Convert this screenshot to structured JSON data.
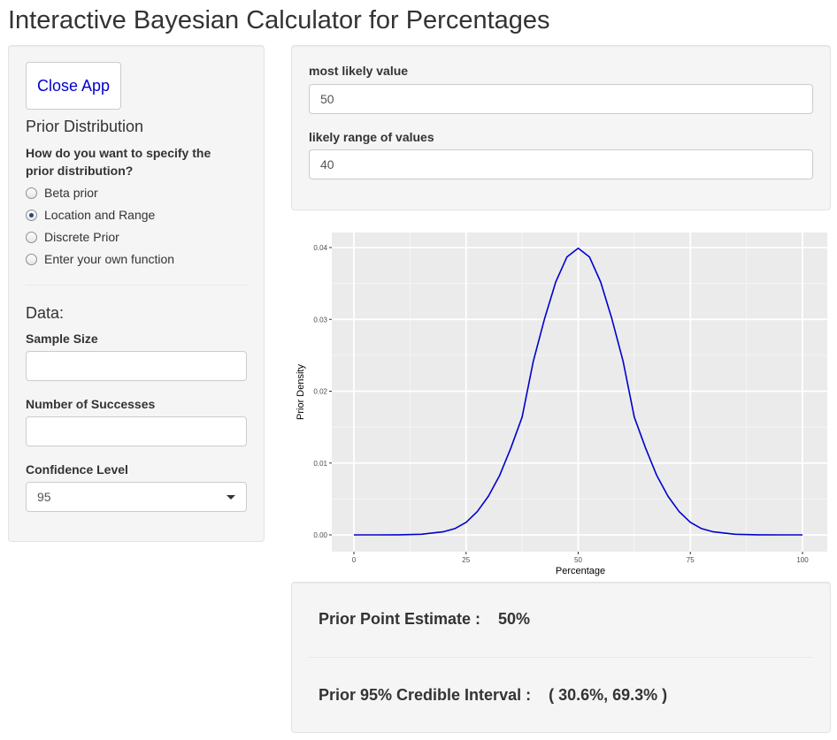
{
  "app": {
    "title": "Interactive Bayesian Calculator for Percentages"
  },
  "sidebar": {
    "close_button": "Close App",
    "prior_heading": "Prior Distribution",
    "prior_question_line1": "How do you want to specify the",
    "prior_question_line2": "prior distribution?",
    "prior_options": [
      {
        "label": "Beta prior",
        "selected": false
      },
      {
        "label": "Location and Range",
        "selected": true
      },
      {
        "label": "Discrete Prior",
        "selected": false
      },
      {
        "label": "Enter your own function",
        "selected": false
      }
    ],
    "data_heading": "Data:",
    "sample_size": {
      "label": "Sample Size",
      "value": ""
    },
    "successes": {
      "label": "Number of Successes",
      "value": ""
    },
    "confidence": {
      "label": "Confidence Level",
      "value": "95"
    }
  },
  "params": {
    "most_likely": {
      "label": "most likely value",
      "value": "50"
    },
    "range": {
      "label": "likely range of values",
      "value": "40"
    }
  },
  "chart_data": {
    "type": "line",
    "title": "",
    "xlabel": "Percentage",
    "ylabel": "Prior Density",
    "xlim": [
      0,
      100
    ],
    "ylim": [
      0,
      0.04
    ],
    "x_ticks": [
      0,
      25,
      50,
      75,
      100
    ],
    "y_ticks": [
      "0.00",
      "0.01",
      "0.02",
      "0.03",
      "0.04"
    ],
    "grid": true,
    "line_color": "#0000cc",
    "panel_color": "#ebebeb",
    "series": [
      {
        "x": [
          0,
          5,
          10,
          15,
          20,
          22.5,
          25,
          27.5,
          30,
          32.5,
          35,
          37.5,
          40,
          42.5,
          45,
          47.5,
          50,
          52.5,
          55,
          57.5,
          60,
          62.5,
          65,
          67.5,
          70,
          72.5,
          75,
          77.5,
          80,
          85,
          90,
          95,
          100
        ],
        "values": [
          0,
          0,
          1e-05,
          9e-05,
          0.00044,
          0.00088,
          0.00175,
          0.00324,
          0.0054,
          0.0083,
          0.0121,
          0.0164,
          0.0242,
          0.0301,
          0.0352,
          0.0387,
          0.0399,
          0.0387,
          0.0352,
          0.0301,
          0.0242,
          0.0164,
          0.0121,
          0.0083,
          0.0054,
          0.00324,
          0.00175,
          0.00088,
          0.00044,
          9e-05,
          1e-05,
          0,
          0
        ]
      }
    ]
  },
  "results": {
    "point_estimate": "Prior Point Estimate :    50%",
    "credible_interval": "Prior 95% Credible Interval :    ( 30.6%, 69.3% )"
  }
}
